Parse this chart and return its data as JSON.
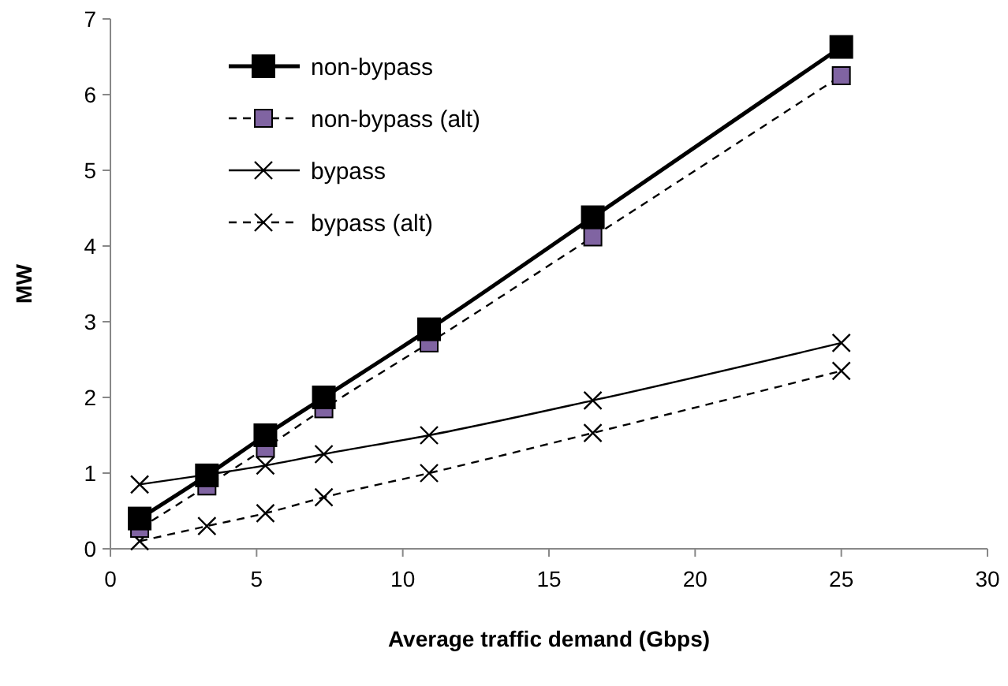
{
  "chart_data": {
    "type": "line",
    "xlabel": "Average traffic demand (Gbps)",
    "ylabel": "MW",
    "x": [
      1,
      3.3,
      5.3,
      7.3,
      10.9,
      16.5,
      25
    ],
    "xlim": [
      0,
      30
    ],
    "xticks": [
      0,
      5,
      10,
      15,
      20,
      25,
      30
    ],
    "ylim": [
      0,
      7
    ],
    "yticks": [
      0,
      1,
      2,
      3,
      4,
      5,
      6,
      7
    ],
    "grid": false,
    "legend": "top left",
    "series": [
      {
        "name": "non-bypass",
        "color": "#000000",
        "marker": "square",
        "line_style": "solid",
        "values": [
          0.4,
          0.97,
          1.5,
          2.0,
          2.9,
          4.38,
          6.63
        ]
      },
      {
        "name": "non-bypass (alt)",
        "color": "#8064a2",
        "marker": "square",
        "line_style": "dashed",
        "values": [
          0.27,
          0.83,
          1.33,
          1.85,
          2.72,
          4.12,
          6.25
        ]
      },
      {
        "name": "bypass",
        "color": "#000000",
        "marker": "cross",
        "line_style": "solid",
        "values": [
          0.85,
          0.98,
          1.1,
          1.25,
          1.5,
          1.96,
          2.72
        ]
      },
      {
        "name": "bypass (alt)",
        "color": "#000000",
        "marker": "cross",
        "line_style": "dashed",
        "values": [
          0.1,
          0.3,
          0.47,
          0.68,
          1.0,
          1.53,
          2.35
        ]
      }
    ]
  }
}
